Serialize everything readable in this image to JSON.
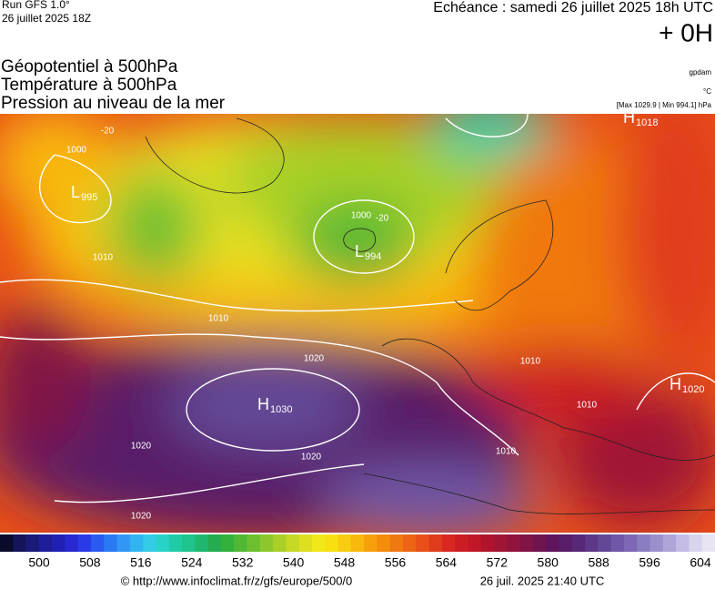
{
  "header": {
    "run": "Run GFS 1.0°",
    "run_date": "26 juillet 2025 18Z",
    "echeance": "Echéance : samedi 26 juillet 2025 18h UTC",
    "offset": "+ 0H",
    "layers": [
      "Géopotentiel à 500hPa",
      "Température à 500hPa",
      "Pression au niveau de la mer"
    ],
    "units": [
      "gpdam",
      "°C",
      "[Max 1029.9 | Min 994.1] hPa"
    ]
  },
  "map": {
    "centers": [
      {
        "kind": "L",
        "value": "995"
      },
      {
        "kind": "L",
        "value": "994"
      },
      {
        "kind": "H",
        "value": "1018"
      },
      {
        "kind": "H",
        "value": "1030"
      },
      {
        "kind": "H",
        "value": "1020"
      }
    ],
    "isobar_labels": [
      "1000",
      "1010",
      "1020",
      "1020",
      "1020",
      "1020",
      "1010",
      "1010",
      "1010",
      "-20",
      "-20",
      "1010",
      "1000"
    ]
  },
  "colorbar": {
    "colors": [
      "#0a0a2a",
      "#14145a",
      "#1a1a7a",
      "#1e1e9a",
      "#2020b4",
      "#2828d0",
      "#2a3ae8",
      "#2a5af0",
      "#2a7af4",
      "#3296f4",
      "#32b4f0",
      "#32cce8",
      "#28d2c8",
      "#20cca8",
      "#1ec48c",
      "#1eb870",
      "#24ac50",
      "#34b03c",
      "#50b834",
      "#6cc030",
      "#8cc82c",
      "#a8d028",
      "#c4d824",
      "#dce020",
      "#f0e818",
      "#f8e010",
      "#f8cc10",
      "#f8b80c",
      "#f8a00c",
      "#f48c0c",
      "#f07810",
      "#ec6414",
      "#e85018",
      "#e03c1c",
      "#d82820",
      "#cc1c24",
      "#c01828",
      "#b0142c",
      "#a01434",
      "#90143c",
      "#801444",
      "#701450",
      "#60145c",
      "#581c68",
      "#582878",
      "#5c3888",
      "#644898",
      "#7058a8",
      "#7c68b4",
      "#8c7cc0",
      "#9c90cc",
      "#b0a4d8",
      "#c4bce4",
      "#d8d4ee",
      "#e8e4f4"
    ],
    "ticks": [
      500,
      508,
      516,
      524,
      532,
      540,
      548,
      556,
      564,
      572,
      580,
      588,
      596,
      604
    ]
  },
  "footer": {
    "source": "© http://www.infoclimat.fr/z/gfs/europe/500/0",
    "generated": "26 juil. 2025 21:40 UTC"
  }
}
